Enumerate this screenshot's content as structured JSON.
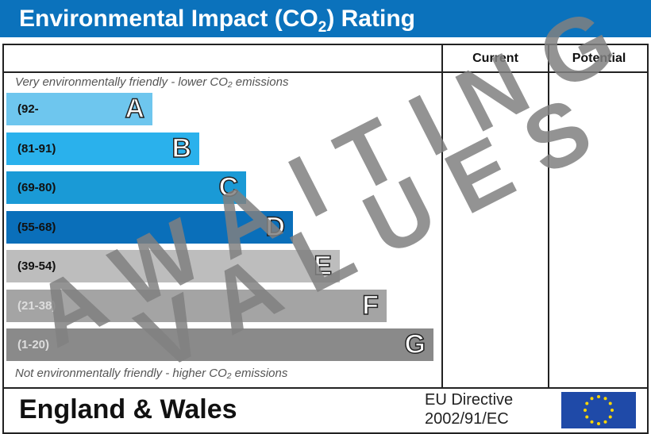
{
  "title": {
    "main": "Environmental Impact (CO",
    "sub": "2",
    "end": ") Rating"
  },
  "columns": {
    "current": "Current",
    "potential": "Potential"
  },
  "top_note": "Very environmentally friendly - lower CO₂ emissions",
  "bottom_note": "Not environmentally friendly - higher CO₂ emissions",
  "bands": [
    {
      "letter": "A",
      "range": "(92-",
      "color": "#6ec6ee"
    },
    {
      "letter": "B",
      "range": "(81-91)",
      "color": "#2ab1ec"
    },
    {
      "letter": "C",
      "range": "(69-80)",
      "color": "#1a9ad6"
    },
    {
      "letter": "D",
      "range": "(55-68)",
      "color": "#0a6fba"
    },
    {
      "letter": "E",
      "range": "(39-54)",
      "color": "#bdbdbd"
    },
    {
      "letter": "F",
      "range": "(21-38)",
      "color": "#a4a4a4"
    },
    {
      "letter": "G",
      "range": "(1-20)",
      "color": "#8a8a8a"
    }
  ],
  "current_rating": "",
  "potential_rating": "",
  "watermark": {
    "line1": "AWAITING",
    "line2": "VALUES"
  },
  "footer": {
    "region": "England & Wales",
    "directive_line1": "EU Directive",
    "directive_line2": "2002/91/EC",
    "flag_icon": "eu-flag-icon"
  }
}
